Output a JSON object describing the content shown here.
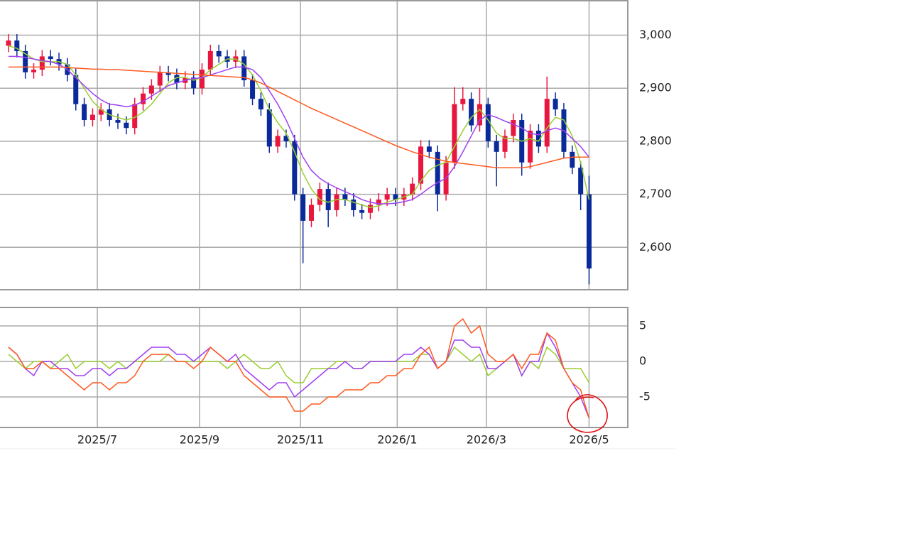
{
  "chart_data": [
    {
      "type": "candlestick",
      "open": [
        2980,
        2990,
        2970,
        2930,
        2935,
        2960,
        2955,
        2945,
        2925,
        2870,
        2840,
        2850,
        2860,
        2840,
        2835,
        2825,
        2870,
        2890,
        2905,
        2930,
        2925,
        2910,
        2920,
        2900,
        2935,
        2970,
        2960,
        2950,
        2960,
        2915,
        2880,
        2860,
        2790,
        2810,
        2800,
        2700,
        2650,
        2680,
        2710,
        2670,
        2700,
        2690,
        2670,
        2665,
        2680,
        2690,
        2700,
        2690,
        2700,
        2720,
        2790,
        2780,
        2700,
        2760,
        2870,
        2880,
        2830,
        2870,
        2800,
        2780,
        2810,
        2840,
        2760,
        2820,
        2790,
        2880,
        2860,
        2780,
        2750,
        2700
      ],
      "high": [
        3002,
        3002,
        2982,
        2947,
        2972,
        2972,
        2967,
        2957,
        2937,
        2882,
        2862,
        2872,
        2872,
        2852,
        2847,
        2882,
        2902,
        2917,
        2942,
        2942,
        2937,
        2932,
        2932,
        2947,
        2982,
        2982,
        2972,
        2972,
        2972,
        2927,
        2892,
        2872,
        2822,
        2822,
        2812,
        2712,
        2692,
        2722,
        2722,
        2712,
        2712,
        2702,
        2682,
        2692,
        2702,
        2712,
        2712,
        2712,
        2732,
        2802,
        2802,
        2792,
        2772,
        2902,
        2902,
        2892,
        2900,
        2882,
        2812,
        2822,
        2852,
        2852,
        2832,
        2832,
        2922,
        2892,
        2872,
        2792,
        2762,
        2735
      ],
      "low": [
        2968,
        2958,
        2918,
        2918,
        2923,
        2943,
        2933,
        2913,
        2858,
        2828,
        2828,
        2838,
        2828,
        2823,
        2813,
        2813,
        2858,
        2878,
        2893,
        2913,
        2898,
        2898,
        2888,
        2888,
        2923,
        2948,
        2938,
        2938,
        2903,
        2868,
        2848,
        2778,
        2778,
        2788,
        2688,
        2570,
        2638,
        2668,
        2638,
        2658,
        2678,
        2658,
        2653,
        2653,
        2668,
        2678,
        2678,
        2678,
        2688,
        2708,
        2768,
        2668,
        2688,
        2748,
        2858,
        2818,
        2818,
        2788,
        2715,
        2768,
        2798,
        2735,
        2748,
        2778,
        2778,
        2848,
        2768,
        2738,
        2670,
        2530
      ],
      "close": [
        2990,
        2970,
        2930,
        2935,
        2960,
        2955,
        2945,
        2925,
        2870,
        2840,
        2850,
        2860,
        2840,
        2835,
        2825,
        2870,
        2890,
        2905,
        2930,
        2925,
        2910,
        2920,
        2900,
        2935,
        2970,
        2960,
        2950,
        2960,
        2915,
        2880,
        2860,
        2790,
        2810,
        2800,
        2700,
        2650,
        2680,
        2710,
        2670,
        2700,
        2690,
        2670,
        2665,
        2680,
        2690,
        2700,
        2690,
        2700,
        2720,
        2790,
        2780,
        2700,
        2760,
        2870,
        2880,
        2830,
        2870,
        2800,
        2780,
        2810,
        2840,
        2760,
        2820,
        2790,
        2880,
        2860,
        2780,
        2750,
        2700,
        2560
      ],
      "up_color": "#e8173f",
      "down_color": "#0b2a9a",
      "series": [
        {
          "color": "#9acd32",
          "values": [
            2980,
            2975,
            2965,
            2955,
            2950,
            2950,
            2950,
            2945,
            2925,
            2900,
            2875,
            2860,
            2850,
            2845,
            2840,
            2845,
            2855,
            2870,
            2890,
            2910,
            2920,
            2920,
            2915,
            2920,
            2935,
            2945,
            2955,
            2955,
            2945,
            2925,
            2895,
            2860,
            2835,
            2815,
            2780,
            2740,
            2710,
            2690,
            2685,
            2690,
            2690,
            2685,
            2680,
            2675,
            2678,
            2685,
            2690,
            2695,
            2700,
            2725,
            2745,
            2755,
            2760,
            2790,
            2820,
            2845,
            2860,
            2840,
            2815,
            2805,
            2805,
            2800,
            2805,
            2800,
            2825,
            2845,
            2840,
            2810,
            2760,
            2690
          ]
        },
        {
          "color": "#a040f0",
          "values": [
            2960,
            2960,
            2958,
            2955,
            2952,
            2950,
            2945,
            2935,
            2920,
            2905,
            2890,
            2878,
            2870,
            2868,
            2865,
            2868,
            2875,
            2885,
            2895,
            2905,
            2910,
            2915,
            2918,
            2920,
            2925,
            2930,
            2935,
            2940,
            2940,
            2935,
            2920,
            2895,
            2870,
            2840,
            2805,
            2770,
            2745,
            2730,
            2720,
            2712,
            2705,
            2698,
            2690,
            2685,
            2682,
            2682,
            2683,
            2686,
            2690,
            2700,
            2712,
            2722,
            2730,
            2752,
            2780,
            2810,
            2840,
            2850,
            2845,
            2838,
            2832,
            2825,
            2815,
            2812,
            2820,
            2825,
            2820,
            2805,
            2790,
            2770
          ]
        },
        {
          "color": "#ff5a1f",
          "values": [
            2940,
            2940,
            2940,
            2940,
            2940,
            2940,
            2940,
            2939,
            2938,
            2937,
            2936,
            2936,
            2935,
            2935,
            2934,
            2933,
            2932,
            2931,
            2930,
            2929,
            2928,
            2927,
            2926,
            2925,
            2924,
            2923,
            2922,
            2921,
            2920,
            2916,
            2910,
            2902,
            2894,
            2886,
            2878,
            2870,
            2862,
            2855,
            2848,
            2841,
            2834,
            2827,
            2820,
            2813,
            2806,
            2799,
            2792,
            2786,
            2780,
            2775,
            2770,
            2766,
            2762,
            2760,
            2758,
            2756,
            2754,
            2752,
            2750,
            2750,
            2750,
            2750,
            2752,
            2756,
            2760,
            2764,
            2768,
            2770,
            2770,
            2770
          ]
        }
      ],
      "ylim": [
        2520,
        3065
      ],
      "yticks": [
        {
          "value": 2600,
          "label": "2,600"
        },
        {
          "value": 2700,
          "label": "2,700"
        },
        {
          "value": 2800,
          "label": "2,800"
        },
        {
          "value": 2900,
          "label": "2,900"
        },
        {
          "value": 3000,
          "label": "3,000"
        }
      ],
      "grid": true
    },
    {
      "type": "line",
      "series": [
        {
          "color": "#9acd32",
          "values": [
            1,
            0,
            -1,
            0,
            0,
            -1,
            0,
            1,
            -1,
            0,
            0,
            0,
            -1,
            0,
            -1,
            0,
            0,
            0,
            0,
            1,
            0,
            0,
            0,
            0,
            0,
            0,
            -1,
            0,
            1,
            0,
            -1,
            -1,
            0,
            -2,
            -3,
            -3,
            -1,
            -1,
            -1,
            0,
            0,
            -1,
            -1,
            0,
            0,
            0,
            0,
            0,
            0,
            1,
            1,
            -1,
            0,
            2,
            1,
            0,
            1,
            -2,
            -1,
            0,
            1,
            -2,
            0,
            -1,
            2,
            1,
            -1,
            -1,
            -1,
            -3
          ]
        },
        {
          "color": "#a040f0",
          "values": [
            2,
            1,
            -1,
            -2,
            0,
            0,
            -1,
            -1,
            -2,
            -2,
            -1,
            -1,
            -2,
            -1,
            -1,
            0,
            1,
            2,
            2,
            2,
            1,
            1,
            0,
            1,
            2,
            1,
            0,
            1,
            -1,
            -2,
            -3,
            -4,
            -3,
            -3,
            -5,
            -4,
            -3,
            -2,
            -1,
            -1,
            0,
            -1,
            -1,
            0,
            0,
            0,
            0,
            1,
            1,
            2,
            1,
            -1,
            0,
            3,
            3,
            2,
            2,
            -1,
            -1,
            0,
            1,
            -2,
            0,
            0,
            4,
            2,
            -1,
            -3,
            -5,
            -8
          ]
        },
        {
          "color": "#ff5a1f",
          "values": [
            2,
            1,
            -1,
            -1,
            0,
            -1,
            -1,
            -2,
            -3,
            -4,
            -3,
            -3,
            -4,
            -3,
            -3,
            -2,
            0,
            1,
            1,
            1,
            0,
            0,
            -1,
            0,
            2,
            1,
            0,
            0,
            -2,
            -3,
            -4,
            -5,
            -5,
            -5,
            -7,
            -7,
            -6,
            -6,
            -5,
            -5,
            -4,
            -4,
            -4,
            -3,
            -3,
            -2,
            -2,
            -1,
            -1,
            1,
            2,
            -1,
            0,
            5,
            6,
            4,
            5,
            1,
            0,
            0,
            1,
            -1,
            1,
            1,
            4,
            3,
            -1,
            -3,
            -4,
            -8
          ]
        }
      ],
      "xlim": [
        -1.01,
        73.6
      ],
      "xticks": [
        {
          "value": 10.56,
          "label": "2025/7"
        },
        {
          "value": 22.7,
          "label": "2025/9"
        },
        {
          "value": 34.7,
          "label": "2025/11"
        },
        {
          "value": 46.2,
          "label": "2026/1"
        },
        {
          "value": 56.8,
          "label": "2026/3"
        },
        {
          "value": 69.0,
          "label": "2026/5"
        }
      ],
      "ylim": [
        -9.3,
        7.6
      ],
      "yticks": [
        -5,
        0,
        5
      ],
      "grid": true
    }
  ]
}
